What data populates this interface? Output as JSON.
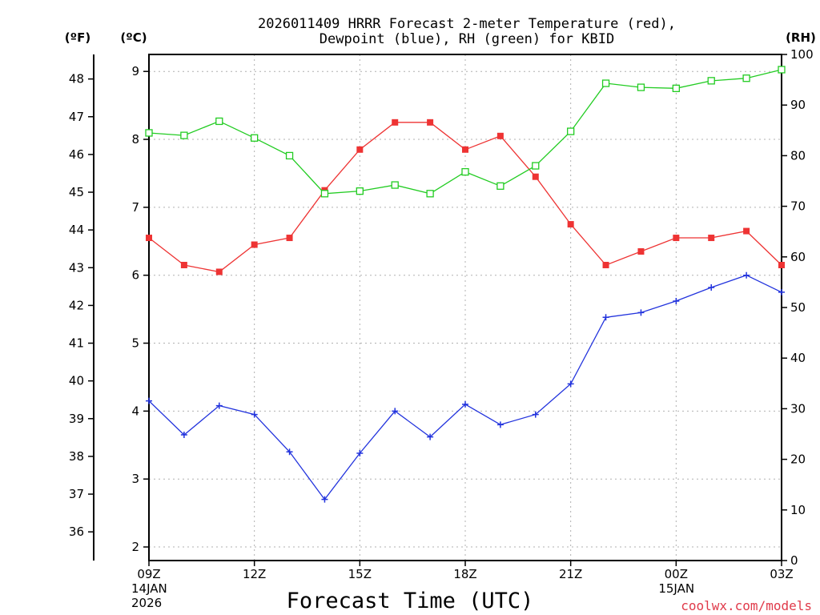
{
  "chart_data": {
    "type": "line",
    "title_lines": [
      "2026011409 HRRR Forecast 2-meter Temperature (red),",
      "Dewpoint (blue), RH (green) for KBID"
    ],
    "xlabel": "Forecast Time (UTC)",
    "credit": "coolwx.com/models",
    "unit_labels": {
      "fahrenheit": "(ºF)",
      "celsius": "(ºC)",
      "rh": "(RH)"
    },
    "x_hours": [
      0,
      1,
      2,
      3,
      4,
      5,
      6,
      7,
      8,
      9,
      10,
      11,
      12,
      13,
      14,
      15,
      16,
      17,
      18
    ],
    "x_ticks": [
      {
        "hour": 0,
        "lines": [
          "09Z",
          "14JAN",
          "2026"
        ]
      },
      {
        "hour": 3,
        "lines": [
          "12Z"
        ]
      },
      {
        "hour": 6,
        "lines": [
          "15Z"
        ]
      },
      {
        "hour": 9,
        "lines": [
          "18Z"
        ]
      },
      {
        "hour": 12,
        "lines": [
          "21Z"
        ]
      },
      {
        "hour": 15,
        "lines": [
          "00Z",
          "15JAN"
        ]
      },
      {
        "hour": 18,
        "lines": [
          "03Z"
        ]
      }
    ],
    "xlim": [
      0,
      18
    ],
    "celsius_axis": {
      "range": [
        1.8,
        9.25
      ],
      "ticks": [
        2,
        3,
        4,
        5,
        6,
        7,
        8,
        9
      ]
    },
    "fahrenheit_axis": {
      "ticks": [
        36,
        37,
        38,
        39,
        40,
        41,
        42,
        43,
        44,
        45,
        46,
        47,
        48
      ]
    },
    "rh_axis": {
      "range": [
        0,
        100
      ],
      "ticks": [
        0,
        10,
        20,
        30,
        40,
        50,
        60,
        70,
        80,
        90,
        100
      ]
    },
    "grid": true,
    "series": [
      {
        "key": "temperature",
        "axis": "celsius",
        "color": "#ee3333",
        "marker": "filled-square",
        "values": [
          6.55,
          6.15,
          6.05,
          6.45,
          6.55,
          7.25,
          7.85,
          8.25,
          8.25,
          7.85,
          8.05,
          7.45,
          6.75,
          6.15,
          6.35,
          6.55,
          6.55,
          6.65,
          6.15
        ]
      },
      {
        "key": "dewpoint",
        "axis": "celsius",
        "color": "#2233dd",
        "marker": "plus",
        "values": [
          4.15,
          3.65,
          4.08,
          3.95,
          3.4,
          2.7,
          3.38,
          4.0,
          3.62,
          4.1,
          3.8,
          3.95,
          4.4,
          5.38,
          5.45,
          5.62,
          5.82,
          6.0,
          5.75
        ]
      },
      {
        "key": "rh",
        "axis": "rh",
        "color": "#22cc22",
        "marker": "open-square",
        "values": [
          84.5,
          84,
          86.8,
          83.5,
          80,
          72.5,
          73,
          74.2,
          72.5,
          76.8,
          74,
          78,
          84.8,
          94.3,
          93.5,
          93.3,
          94.8,
          95.3,
          97
        ]
      }
    ]
  }
}
